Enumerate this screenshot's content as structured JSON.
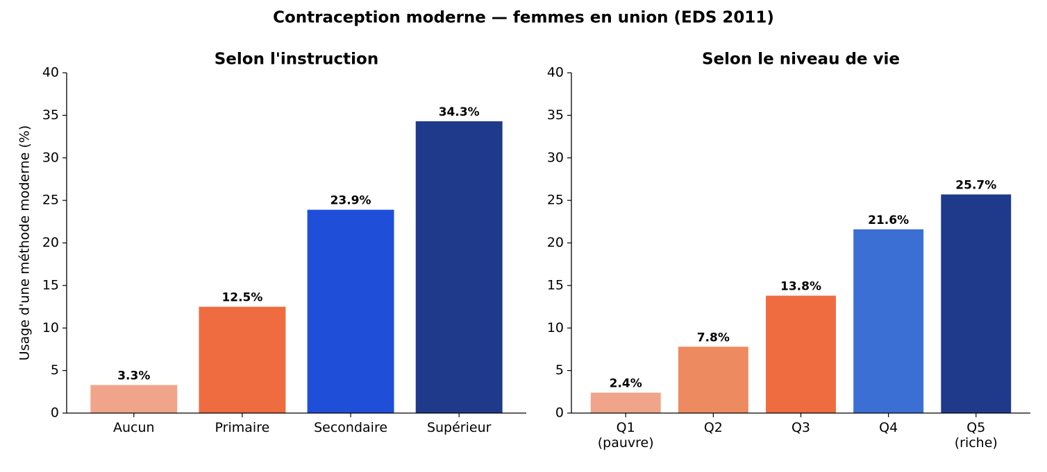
{
  "title": "Contraception moderne — femmes en union (EDS 2011)",
  "chart_data": [
    {
      "type": "bar",
      "title": "Selon l'instruction",
      "y_label": "Usage d'une méthode moderne (%)",
      "categories": [
        "Aucun",
        "Primaire",
        "Secondaire",
        "Supérieur"
      ],
      "values": [
        3.3,
        12.5,
        23.9,
        34.3
      ],
      "value_labels": [
        "3.3%",
        "12.5%",
        "23.9%",
        "34.3%"
      ],
      "colors": [
        "#f0a58a",
        "#ef6c40",
        "#1f4fd8",
        "#1f3a8a"
      ],
      "ylim": [
        0,
        40
      ],
      "yticks": [
        0,
        5,
        10,
        15,
        20,
        25,
        30,
        35,
        40
      ],
      "grid": false
    },
    {
      "type": "bar",
      "title": "Selon le niveau de vie",
      "categories": [
        "Q1\n(pauvre)",
        "Q2",
        "Q3",
        "Q4",
        "Q5\n(riche)"
      ],
      "values": [
        2.4,
        7.8,
        13.8,
        21.6,
        25.7
      ],
      "value_labels": [
        "2.4%",
        "7.8%",
        "13.8%",
        "21.6%",
        "25.7%"
      ],
      "colors": [
        "#f0a58a",
        "#ee8a5f",
        "#ef6c40",
        "#3b6fd4",
        "#1f3a8a"
      ],
      "ylim": [
        0,
        40
      ],
      "yticks": [
        0,
        5,
        10,
        15,
        20,
        25,
        30,
        35,
        40
      ],
      "grid": false
    }
  ]
}
